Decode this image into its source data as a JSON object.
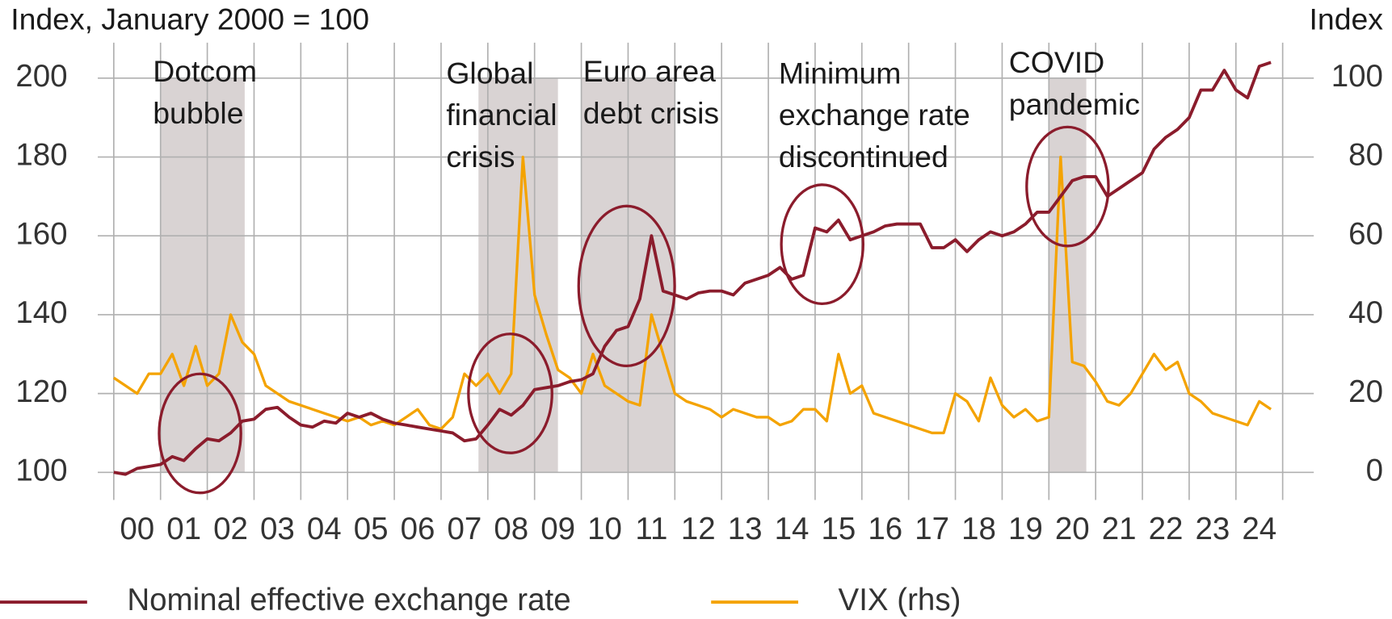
{
  "chart_data": {
    "type": "line",
    "y_axis_label": "Index, January 2000 = 100",
    "y2_axis_label": "Index",
    "xlim": [
      2000,
      2025
    ],
    "xticks": [
      {
        "value": 2000,
        "label": "00"
      },
      {
        "value": 2001,
        "label": "01"
      },
      {
        "value": 2002,
        "label": "02"
      },
      {
        "value": 2003,
        "label": "03"
      },
      {
        "value": 2004,
        "label": "04"
      },
      {
        "value": 2005,
        "label": "05"
      },
      {
        "value": 2006,
        "label": "06"
      },
      {
        "value": 2007,
        "label": "07"
      },
      {
        "value": 2008,
        "label": "08"
      },
      {
        "value": 2009,
        "label": "09"
      },
      {
        "value": 2010,
        "label": "10"
      },
      {
        "value": 2011,
        "label": "11"
      },
      {
        "value": 2012,
        "label": "12"
      },
      {
        "value": 2013,
        "label": "13"
      },
      {
        "value": 2014,
        "label": "14"
      },
      {
        "value": 2015,
        "label": "15"
      },
      {
        "value": 2016,
        "label": "16"
      },
      {
        "value": 2017,
        "label": "17"
      },
      {
        "value": 2018,
        "label": "18"
      },
      {
        "value": 2019,
        "label": "19"
      },
      {
        "value": 2020,
        "label": "20"
      },
      {
        "value": 2021,
        "label": "21"
      },
      {
        "value": 2022,
        "label": "22"
      },
      {
        "value": 2023,
        "label": "23"
      },
      {
        "value": 2024,
        "label": "24"
      }
    ],
    "ylim": [
      93,
      209
    ],
    "yticks": [
      100,
      120,
      140,
      160,
      180,
      200
    ],
    "y2lim": [
      -7,
      109
    ],
    "y2ticks": [
      0,
      20,
      40,
      60,
      80,
      100
    ],
    "grid": true,
    "legend": "bottom",
    "shaded_periods": [
      {
        "start": 2001.0,
        "end": 2002.8,
        "color": "#d9d3d3"
      },
      {
        "start": 2007.8,
        "end": 2009.5,
        "color": "#d9d3d3"
      },
      {
        "start": 2010.0,
        "end": 2012.0,
        "color": "#d9d3d3"
      },
      {
        "start": 2020.0,
        "end": 2020.8,
        "color": "#d9d3d3"
      }
    ],
    "annotations": [
      {
        "lines": [
          "Dotcom",
          "bubble"
        ]
      },
      {
        "lines": [
          "Global",
          "financial",
          "crisis"
        ]
      },
      {
        "lines": [
          "Euro area",
          "debt crisis"
        ]
      },
      {
        "lines": [
          "Minimum",
          "exchange rate",
          "discontinued"
        ]
      },
      {
        "lines": [
          "COVID",
          "pandemic"
        ]
      }
    ],
    "x": [
      2000,
      2000.25,
      2000.5,
      2000.75,
      2001,
      2001.25,
      2001.5,
      2001.75,
      2002,
      2002.25,
      2002.5,
      2002.75,
      2003,
      2003.25,
      2003.5,
      2003.75,
      2004,
      2004.25,
      2004.5,
      2004.75,
      2005,
      2005.25,
      2005.5,
      2005.75,
      2006,
      2006.25,
      2006.5,
      2006.75,
      2007,
      2007.25,
      2007.5,
      2007.75,
      2008,
      2008.25,
      2008.5,
      2008.75,
      2009,
      2009.25,
      2009.5,
      2009.75,
      2010,
      2010.25,
      2010.5,
      2010.75,
      2011,
      2011.25,
      2011.5,
      2011.75,
      2012,
      2012.25,
      2012.5,
      2012.75,
      2013,
      2013.25,
      2013.5,
      2013.75,
      2014,
      2014.25,
      2014.5,
      2014.75,
      2015,
      2015.25,
      2015.5,
      2015.75,
      2016,
      2016.25,
      2016.5,
      2016.75,
      2017,
      2017.25,
      2017.5,
      2017.75,
      2018,
      2018.25,
      2018.5,
      2018.75,
      2019,
      2019.25,
      2019.5,
      2019.75,
      2020,
      2020.25,
      2020.5,
      2020.75,
      2021,
      2021.25,
      2021.5,
      2021.75,
      2022,
      2022.25,
      2022.5,
      2022.75,
      2023,
      2023.25,
      2023.5,
      2023.75,
      2024,
      2024.25,
      2024.5,
      2024.75
    ],
    "series": [
      {
        "name": "Nominal effective exchange rate",
        "color": "#8b1c2c",
        "values": [
          100,
          99.5,
          101,
          101.5,
          102,
          104,
          103,
          106,
          108.5,
          108,
          110,
          113,
          113.5,
          116,
          116.5,
          114,
          112,
          111.5,
          113,
          112.5,
          115,
          114,
          115,
          113.5,
          112.5,
          112,
          111.5,
          111,
          110.5,
          110,
          108,
          108.5,
          112,
          116,
          114.5,
          117,
          121,
          121.5,
          122,
          123,
          123.5,
          125,
          132,
          136,
          137,
          144,
          160,
          146,
          145,
          144,
          145.5,
          146,
          146,
          145,
          148,
          149,
          150,
          152,
          149,
          150,
          162,
          161,
          164,
          159,
          160,
          161,
          162.5,
          163,
          163,
          163,
          157,
          157,
          159,
          156,
          159,
          161,
          160,
          161,
          163,
          166,
          166,
          170,
          174,
          175,
          175,
          170,
          172,
          174,
          176,
          182,
          185,
          187,
          190,
          197,
          197,
          202,
          197,
          195,
          203,
          204
        ]
      },
      {
        "name": "VIX (rhs)",
        "color": "#f4a300",
        "axis": "y2",
        "values": [
          24,
          22,
          20,
          25,
          25,
          30,
          22,
          32,
          22,
          25,
          40,
          33,
          30,
          22,
          20,
          18,
          17,
          16,
          15,
          14,
          13,
          14,
          12,
          13,
          12,
          14,
          16,
          12,
          11,
          14,
          25,
          22,
          25,
          20,
          25,
          80,
          45,
          35,
          26,
          24,
          20,
          30,
          22,
          20,
          18,
          17,
          40,
          30,
          20,
          18,
          17,
          16,
          14,
          16,
          15,
          14,
          14,
          12,
          13,
          16,
          16,
          13,
          30,
          20,
          22,
          15,
          14,
          13,
          12,
          11,
          10,
          10,
          20,
          18,
          13,
          24,
          17,
          14,
          16,
          13,
          14,
          80,
          28,
          27,
          23,
          18,
          17,
          20,
          25,
          30,
          26,
          28,
          20,
          18,
          15,
          14,
          13,
          12,
          18,
          16
        ]
      }
    ]
  }
}
